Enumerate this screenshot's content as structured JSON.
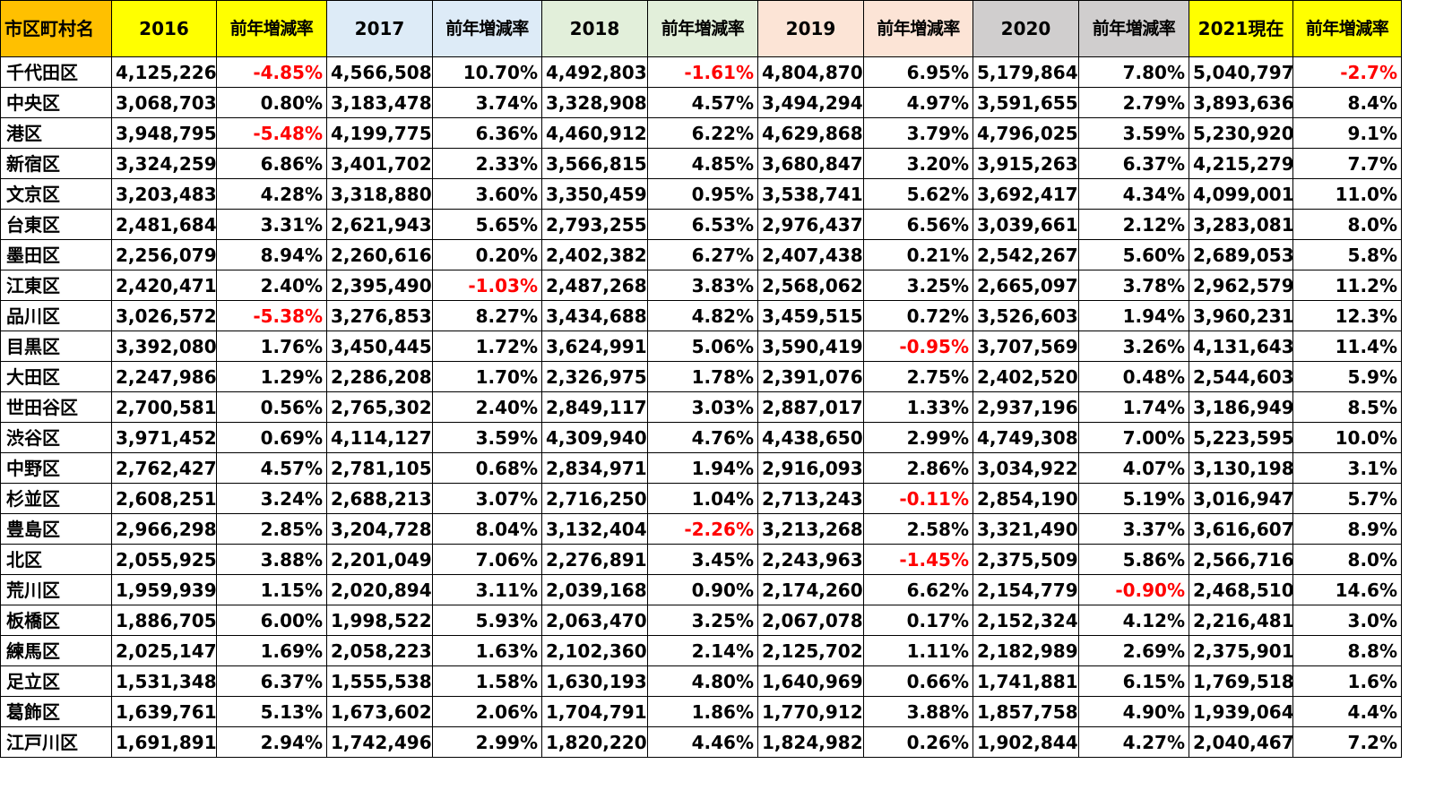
{
  "colors": {
    "name_header": "#ffc000",
    "y2016": "#ffff00",
    "y2016_rate": "#ffff00",
    "y2017": "#ddebf7",
    "y2017_rate": "#ddebf7",
    "y2018": "#e2efda",
    "y2018_rate": "#e2efda",
    "y2019": "#fce4d6",
    "y2019_rate": "#fce4d6",
    "y2020": "#d0cece",
    "y2020_rate": "#d0cece",
    "y2021": "#ffff00",
    "y2021_rate": "#ffff00",
    "negative_text": "#ff0000"
  },
  "headers": [
    {
      "key": "name_header",
      "label": "市区町村名"
    },
    {
      "key": "y2016",
      "label": "2016"
    },
    {
      "key": "y2016_rate",
      "label": "前年増減率"
    },
    {
      "key": "y2017",
      "label": "2017"
    },
    {
      "key": "y2017_rate",
      "label": "前年増減率"
    },
    {
      "key": "y2018",
      "label": "2018"
    },
    {
      "key": "y2018_rate",
      "label": "前年増減率"
    },
    {
      "key": "y2019",
      "label": "2019"
    },
    {
      "key": "y2019_rate",
      "label": "前年増減率"
    },
    {
      "key": "y2020",
      "label": "2020"
    },
    {
      "key": "y2020_rate",
      "label": "前年増減率"
    },
    {
      "key": "y2021",
      "label": "2021現在"
    },
    {
      "key": "y2021_rate",
      "label": "前年増減率"
    }
  ],
  "rows": [
    [
      "千代田区",
      "4,125,226",
      "-4.85%",
      "4,566,508",
      "10.70%",
      "4,492,803",
      "-1.61%",
      "4,804,870",
      "6.95%",
      "5,179,864",
      "7.80%",
      "5,040,797",
      "-2.7%"
    ],
    [
      "中央区",
      "3,068,703",
      "0.80%",
      "3,183,478",
      "3.74%",
      "3,328,908",
      "4.57%",
      "3,494,294",
      "4.97%",
      "3,591,655",
      "2.79%",
      "3,893,636",
      "8.4%"
    ],
    [
      "港区",
      "3,948,795",
      "-5.48%",
      "4,199,775",
      "6.36%",
      "4,460,912",
      "6.22%",
      "4,629,868",
      "3.79%",
      "4,796,025",
      "3.59%",
      "5,230,920",
      "9.1%"
    ],
    [
      "新宿区",
      "3,324,259",
      "6.86%",
      "3,401,702",
      "2.33%",
      "3,566,815",
      "4.85%",
      "3,680,847",
      "3.20%",
      "3,915,263",
      "6.37%",
      "4,215,279",
      "7.7%"
    ],
    [
      "文京区",
      "3,203,483",
      "4.28%",
      "3,318,880",
      "3.60%",
      "3,350,459",
      "0.95%",
      "3,538,741",
      "5.62%",
      "3,692,417",
      "4.34%",
      "4,099,001",
      "11.0%"
    ],
    [
      "台東区",
      "2,481,684",
      "3.31%",
      "2,621,943",
      "5.65%",
      "2,793,255",
      "6.53%",
      "2,976,437",
      "6.56%",
      "3,039,661",
      "2.12%",
      "3,283,081",
      "8.0%"
    ],
    [
      "墨田区",
      "2,256,079",
      "8.94%",
      "2,260,616",
      "0.20%",
      "2,402,382",
      "6.27%",
      "2,407,438",
      "0.21%",
      "2,542,267",
      "5.60%",
      "2,689,053",
      "5.8%"
    ],
    [
      "江東区",
      "2,420,471",
      "2.40%",
      "2,395,490",
      "-1.03%",
      "2,487,268",
      "3.83%",
      "2,568,062",
      "3.25%",
      "2,665,097",
      "3.78%",
      "2,962,579",
      "11.2%"
    ],
    [
      "品川区",
      "3,026,572",
      "-5.38%",
      "3,276,853",
      "8.27%",
      "3,434,688",
      "4.82%",
      "3,459,515",
      "0.72%",
      "3,526,603",
      "1.94%",
      "3,960,231",
      "12.3%"
    ],
    [
      "目黒区",
      "3,392,080",
      "1.76%",
      "3,450,445",
      "1.72%",
      "3,624,991",
      "5.06%",
      "3,590,419",
      "-0.95%",
      "3,707,569",
      "3.26%",
      "4,131,643",
      "11.4%"
    ],
    [
      "大田区",
      "2,247,986",
      "1.29%",
      "2,286,208",
      "1.70%",
      "2,326,975",
      "1.78%",
      "2,391,076",
      "2.75%",
      "2,402,520",
      "0.48%",
      "2,544,603",
      "5.9%"
    ],
    [
      "世田谷区",
      "2,700,581",
      "0.56%",
      "2,765,302",
      "2.40%",
      "2,849,117",
      "3.03%",
      "2,887,017",
      "1.33%",
      "2,937,196",
      "1.74%",
      "3,186,949",
      "8.5%"
    ],
    [
      "渋谷区",
      "3,971,452",
      "0.69%",
      "4,114,127",
      "3.59%",
      "4,309,940",
      "4.76%",
      "4,438,650",
      "2.99%",
      "4,749,308",
      "7.00%",
      "5,223,595",
      "10.0%"
    ],
    [
      "中野区",
      "2,762,427",
      "4.57%",
      "2,781,105",
      "0.68%",
      "2,834,971",
      "1.94%",
      "2,916,093",
      "2.86%",
      "3,034,922",
      "4.07%",
      "3,130,198",
      "3.1%"
    ],
    [
      "杉並区",
      "2,608,251",
      "3.24%",
      "2,688,213",
      "3.07%",
      "2,716,250",
      "1.04%",
      "2,713,243",
      "-0.11%",
      "2,854,190",
      "5.19%",
      "3,016,947",
      "5.7%"
    ],
    [
      "豊島区",
      "2,966,298",
      "2.85%",
      "3,204,728",
      "8.04%",
      "3,132,404",
      "-2.26%",
      "3,213,268",
      "2.58%",
      "3,321,490",
      "3.37%",
      "3,616,607",
      "8.9%"
    ],
    [
      "北区",
      "2,055,925",
      "3.88%",
      "2,201,049",
      "7.06%",
      "2,276,891",
      "3.45%",
      "2,243,963",
      "-1.45%",
      "2,375,509",
      "5.86%",
      "2,566,716",
      "8.0%"
    ],
    [
      "荒川区",
      "1,959,939",
      "1.15%",
      "2,020,894",
      "3.11%",
      "2,039,168",
      "0.90%",
      "2,174,260",
      "6.62%",
      "2,154,779",
      "-0.90%",
      "2,468,510",
      "14.6%"
    ],
    [
      "板橋区",
      "1,886,705",
      "6.00%",
      "1,998,522",
      "5.93%",
      "2,063,470",
      "3.25%",
      "2,067,078",
      "0.17%",
      "2,152,324",
      "4.12%",
      "2,216,481",
      "3.0%"
    ],
    [
      "練馬区",
      "2,025,147",
      "1.69%",
      "2,058,223",
      "1.63%",
      "2,102,360",
      "2.14%",
      "2,125,702",
      "1.11%",
      "2,182,989",
      "2.69%",
      "2,375,901",
      "8.8%"
    ],
    [
      "足立区",
      "1,531,348",
      "6.37%",
      "1,555,538",
      "1.58%",
      "1,630,193",
      "4.80%",
      "1,640,969",
      "0.66%",
      "1,741,881",
      "6.15%",
      "1,769,518",
      "1.6%"
    ],
    [
      "葛飾区",
      "1,639,761",
      "5.13%",
      "1,673,602",
      "2.06%",
      "1,704,791",
      "1.86%",
      "1,770,912",
      "3.88%",
      "1,857,758",
      "4.90%",
      "1,939,064",
      "4.4%"
    ],
    [
      "江戸川区",
      "1,691,891",
      "2.94%",
      "1,742,496",
      "2.99%",
      "1,820,220",
      "4.46%",
      "1,824,982",
      "0.26%",
      "1,902,844",
      "4.27%",
      "2,040,467",
      "7.2%"
    ]
  ]
}
